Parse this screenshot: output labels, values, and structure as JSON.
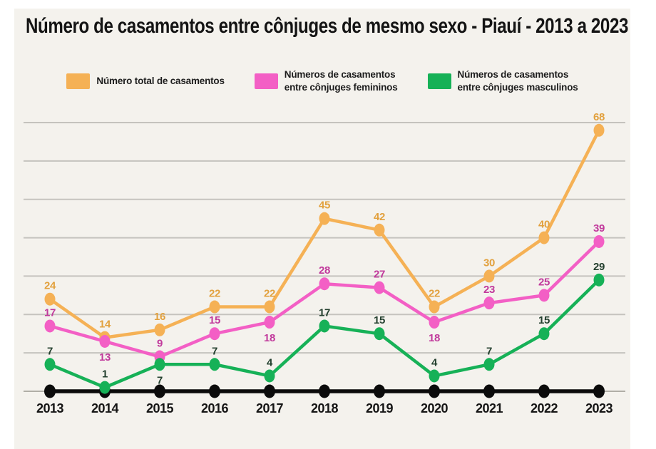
{
  "title": "Número de casamentos entre cônjuges de mesmo sexo - Piauí - 2013 a 2023",
  "legend": {
    "items": [
      {
        "label": "Número total de casamentos"
      },
      {
        "label": "Números de casamentos\nentre cônjuges femininos"
      },
      {
        "label": "Números de casamentos\nentre cônjuges masculinos"
      }
    ]
  },
  "colors": {
    "page_bg": "#ffffff",
    "card_bg": "#f4f2ed",
    "gridline": "#c5c3be",
    "axis": "#0b0b0b",
    "axis_thin": "#9a978f",
    "title_text": "#141414",
    "year_label": "#151515",
    "legend_text": "#1d1d1d"
  },
  "chart_data": {
    "type": "line",
    "title": "Número de casamentos entre cônjuges de mesmo sexo - Piauí - 2013 a 2023",
    "x": [
      2013,
      2014,
      2015,
      2016,
      2017,
      2018,
      2019,
      2020,
      2021,
      2022,
      2023
    ],
    "series": [
      {
        "name": "Número total de casamentos",
        "values": [
          24,
          14,
          16,
          22,
          22,
          45,
          42,
          22,
          30,
          40,
          68
        ],
        "color": "#f5b155",
        "label_color": "#e2a13e",
        "labels_below_x": []
      },
      {
        "name": "Números de casamentos entre cônjuges femininos",
        "values": [
          17,
          13,
          9,
          15,
          18,
          28,
          27,
          18,
          23,
          25,
          39
        ],
        "color": "#f35fc5",
        "label_color": "#c13a9c",
        "labels_below_x": [
          2014,
          2017,
          2020
        ]
      },
      {
        "name": "Números de casamentos entre cônjuges masculinos",
        "values": [
          7,
          1,
          7,
          7,
          4,
          17,
          15,
          4,
          7,
          15,
          29
        ],
        "color": "#16b157",
        "label_color": "#24402f",
        "labels_below_x": [
          2015
        ]
      }
    ],
    "xlabel": "",
    "ylabel": "",
    "ylim": [
      0,
      75
    ],
    "gridline_values": [
      10,
      20,
      30,
      40,
      50,
      60,
      70
    ],
    "grid": true,
    "y_tick_labels_visible": false,
    "legend_position": "top",
    "point_labels_visible": true
  }
}
